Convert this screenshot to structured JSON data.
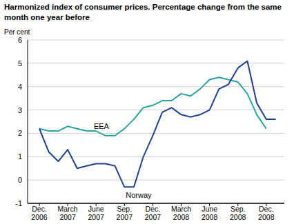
{
  "chart_data": {
    "type": "line",
    "title": "Harmonized index of consumer prices. Percentage change from the same month one year before",
    "y_label": "Per cent",
    "categories": [
      "Dec. 2006",
      null,
      null,
      "March 2007",
      null,
      null,
      "June 2007",
      null,
      null,
      "Sep. 2007",
      null,
      null,
      "Dec. 2007",
      null,
      null,
      "March 2008",
      null,
      null,
      "June 2008",
      null,
      null,
      "Sep. 2008",
      null,
      null,
      "Dec. 2008",
      null
    ],
    "series": [
      {
        "name": "EEA",
        "color": "#2aa3a3",
        "values": [
          2.2,
          2.1,
          2.1,
          2.3,
          2.2,
          2.1,
          2.1,
          1.9,
          1.9,
          2.2,
          2.6,
          3.1,
          3.2,
          3.4,
          3.4,
          3.7,
          3.6,
          3.9,
          4.3,
          4.4,
          4.3,
          4.2,
          3.7,
          2.8,
          2.2,
          null
        ]
      },
      {
        "name": "Norway",
        "color": "#1f3f8f",
        "values": [
          2.2,
          1.2,
          0.8,
          1.3,
          0.5,
          0.6,
          0.7,
          0.7,
          0.6,
          -0.3,
          -0.3,
          1.0,
          1.9,
          2.9,
          3.1,
          2.8,
          2.7,
          2.8,
          3.0,
          3.9,
          4.1,
          4.8,
          5.1,
          3.3,
          2.6,
          2.6
        ]
      }
    ],
    "ylim": [
      -1,
      6
    ],
    "yticks": [
      -1,
      0,
      1,
      2,
      3,
      4,
      5,
      6
    ],
    "grid": true
  }
}
